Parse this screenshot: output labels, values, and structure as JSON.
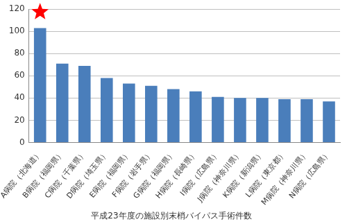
{
  "chart_data": {
    "type": "bar",
    "title": "平成23年度の施設別末梢バイパス手術件数",
    "categories": [
      "A病院（北海道）",
      "B病院（福岡県）",
      "C病院（千葉県）",
      "D病院（埼玉県）",
      "E病院（福岡県）",
      "F病院（岩手県）",
      "G病院（福岡県）",
      "H病院（長崎県）",
      "I病院（広島県）",
      "J病院（神奈川県）",
      "K病院（新潟県）",
      "L病院（東京都）",
      "M病院（神奈川県）",
      "N病院（広島県）"
    ],
    "values": [
      103,
      71,
      69,
      58,
      53,
      51,
      48,
      46,
      41,
      40,
      40,
      39,
      39,
      37
    ],
    "color": "#4a7ebb",
    "ylim": [
      0,
      120
    ],
    "yticks": [
      0,
      20,
      40,
      60,
      80,
      100,
      120
    ],
    "grid": true
  }
}
